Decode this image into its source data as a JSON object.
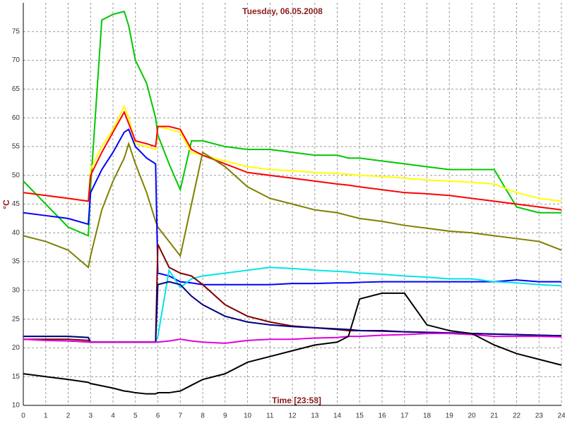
{
  "chart_data": {
    "type": "line",
    "title": "Tuesday, 06.05.2008",
    "xlabel": "Time [23:58]",
    "ylabel": "°C",
    "x": [
      0,
      1,
      2,
      2.9,
      3,
      3.5,
      4,
      4.5,
      4.7,
      5,
      5.5,
      5.9,
      6,
      6.5,
      7,
      7.5,
      8,
      9,
      10,
      11,
      12,
      13,
      14,
      14.5,
      15,
      16,
      17,
      18,
      19,
      20,
      21,
      22,
      23,
      24
    ],
    "series": [
      {
        "color": "#00c800",
        "values": [
          49,
          45,
          41,
          39.5,
          48,
          77,
          78,
          78.5,
          76,
          70,
          66,
          60,
          57,
          52,
          47.5,
          56,
          56,
          55,
          54.5,
          54.5,
          54,
          53.5,
          53.5,
          53,
          53,
          52.5,
          52,
          51.5,
          51,
          51,
          51,
          44.5,
          43.5,
          43.5
        ]
      },
      {
        "color": "#ffff00",
        "values": [
          47,
          46.5,
          46,
          45.5,
          51,
          55,
          58,
          62,
          60,
          55.5,
          55,
          54.5,
          58.5,
          58,
          57.5,
          54,
          53.5,
          52.5,
          51.5,
          51,
          50.8,
          50.5,
          50.3,
          50.2,
          50,
          49.8,
          49.5,
          49.2,
          49,
          48.8,
          48.5,
          47,
          46,
          45.5
        ]
      },
      {
        "color": "#ff0000",
        "values": [
          47,
          46.5,
          46,
          45.5,
          50,
          54,
          57.5,
          61,
          59,
          56,
          55.5,
          55,
          58.5,
          58.5,
          58,
          54.5,
          53.5,
          52,
          50.5,
          50,
          49.5,
          49,
          48.5,
          48.3,
          48,
          47.5,
          47,
          46.8,
          46.5,
          46,
          45.5,
          45,
          44.5,
          44
        ]
      },
      {
        "color": "#808000",
        "values": [
          39.5,
          38.5,
          37,
          34,
          36,
          44,
          49,
          53,
          55.5,
          52,
          47,
          42,
          41,
          38.5,
          36,
          45,
          54,
          51.5,
          48,
          46,
          45,
          44,
          43.5,
          43,
          42.5,
          42,
          41.3,
          40.8,
          40.3,
          40,
          39.5,
          39,
          38.5,
          37
        ]
      },
      {
        "color": "#0000ff",
        "values": [
          43.5,
          43,
          42.5,
          41.5,
          47,
          51,
          54,
          57.5,
          58,
          55,
          53,
          52,
          33,
          32.5,
          31.5,
          31.3,
          31,
          31,
          31,
          31,
          31.2,
          31.2,
          31.3,
          31.3,
          31.4,
          31.5,
          31.5,
          31.5,
          31.5,
          31.5,
          31.5,
          31.8,
          31.5,
          31.5
        ]
      },
      {
        "color": "#00e5e5",
        "values": [
          22,
          22,
          22,
          21.8,
          21,
          21,
          21,
          21,
          21,
          21,
          21,
          21,
          22,
          33.5,
          30.5,
          32,
          32.5,
          33,
          33.5,
          34,
          33.8,
          33.5,
          33.3,
          33.2,
          33,
          32.8,
          32.5,
          32.3,
          32,
          32,
          31.5,
          31.3,
          31,
          30.8
        ]
      },
      {
        "color": "#800000",
        "values": [
          21.5,
          21.5,
          21.5,
          21.3,
          21,
          21,
          21,
          21,
          21,
          21,
          21,
          21,
          38,
          34,
          33,
          32.5,
          31,
          27.5,
          25.5,
          24.5,
          23.8,
          23.5,
          23.2,
          23,
          23,
          22.9,
          22.8,
          22.7,
          22.6,
          22.5,
          22.4,
          22.3,
          22.2,
          22.1
        ]
      },
      {
        "color": "#000080",
        "values": [
          22,
          22,
          22,
          21.8,
          21,
          21,
          21,
          21,
          21,
          21,
          21,
          21,
          31,
          31.5,
          31,
          29,
          27.5,
          25.5,
          24.5,
          24,
          23.7,
          23.5,
          23.3,
          23.2,
          23,
          23,
          22.8,
          22.7,
          22.6,
          22.5,
          22.4,
          22.3,
          22.2,
          22.1
        ]
      },
      {
        "color": "#e000e0",
        "values": [
          21.5,
          21.3,
          21.2,
          21,
          21,
          21,
          21,
          21,
          21,
          21,
          21,
          21,
          21,
          21.2,
          21.5,
          21.2,
          21,
          20.8,
          21.3,
          21.5,
          21.5,
          21.7,
          21.8,
          22,
          22,
          22.2,
          22.3,
          22.5,
          22.5,
          22.3,
          22,
          22,
          22,
          21.9
        ]
      },
      {
        "color": "#000000",
        "values": [
          15.5,
          15,
          14.5,
          14,
          13.8,
          13.4,
          13,
          12.5,
          12.4,
          12.2,
          12,
          12,
          12.2,
          12.2,
          12.5,
          13.5,
          14.5,
          15.5,
          17.5,
          18.5,
          19.5,
          20.5,
          21,
          22,
          28.5,
          29.5,
          29.5,
          24,
          23,
          22.5,
          20.5,
          19,
          18,
          17
        ]
      }
    ],
    "xlim": [
      0,
      24
    ],
    "xticks": [
      0,
      1,
      2,
      3,
      4,
      5,
      6,
      7,
      8,
      9,
      10,
      11,
      12,
      13,
      14,
      15,
      16,
      17,
      18,
      19,
      20,
      21,
      22,
      23,
      24
    ],
    "ylim": [
      10,
      80
    ],
    "yticks": [
      10,
      15,
      20,
      25,
      30,
      35,
      40,
      45,
      50,
      55,
      60,
      65,
      70,
      75
    ],
    "grid": true
  }
}
